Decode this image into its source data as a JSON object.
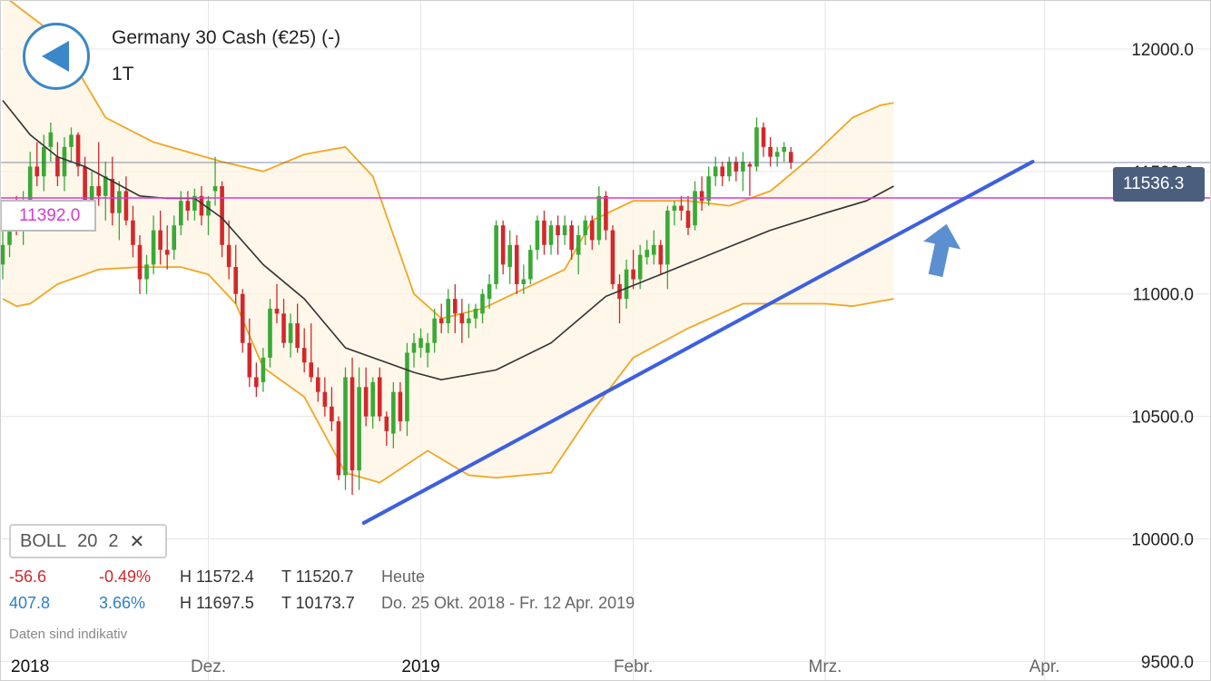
{
  "header": {
    "title": "Germany 30 Cash (€25) (-)",
    "period": "1T"
  },
  "indicator": {
    "name": "BOLL",
    "param1": "20",
    "param2": "2"
  },
  "stats": {
    "row1": {
      "change": "-56.6",
      "change_pct": "-0.49%",
      "high": "H 11572.4",
      "low": "T 11520.7",
      "label": "Heute"
    },
    "row2": {
      "change": "407.8",
      "change_pct": "3.66%",
      "high": "H 11697.5",
      "low": "T 10173.7",
      "label": "Do. 25 Okt. 2018 - Fr. 12 Apr. 2019"
    }
  },
  "disclaimer": "Daten sind indikativ",
  "current_price_label": "11536.3",
  "horizontal_level_label": "11392.0",
  "colors": {
    "up": "#3aa935",
    "down": "#d3282b",
    "bollinger_band": "#f2a623",
    "moving_average": "#333333",
    "trendline": "#3d5fe0",
    "level_line": "#d63ad6",
    "price_line": "#4c5e7d",
    "arrow": "#5b8fd0"
  },
  "chart_data": {
    "type": "candlestick",
    "instrument": "Germany 30 Cash (€25) (-)",
    "period": "1T",
    "y_ticks": [
      "12000.0",
      "11500.0",
      "11000.0",
      "10500.0",
      "10000.0",
      "9500.0"
    ],
    "y_tick_values": [
      12000,
      11500,
      11000,
      10500,
      10000,
      9500
    ],
    "x_ticks": [
      "2018",
      "Dez.",
      "2019",
      "Febr.",
      "Mrz.",
      "Apr."
    ],
    "x_tick_days": [
      0,
      30,
      61,
      92,
      120,
      152
    ],
    "ylim": [
      9420,
      12200
    ],
    "xlim_days": [
      0,
      163
    ],
    "grid": true,
    "current_price": 11536.3,
    "horizontal_level": 11392.0,
    "candles": [
      [
        11120,
        11280,
        11060,
        11200
      ],
      [
        11200,
        11380,
        11150,
        11350
      ],
      [
        11350,
        11400,
        11240,
        11280
      ],
      [
        11280,
        11420,
        11200,
        11380
      ],
      [
        11380,
        11580,
        11300,
        11520
      ],
      [
        11520,
        11620,
        11440,
        11480
      ],
      [
        11480,
        11650,
        11420,
        11600
      ],
      [
        11600,
        11700,
        11540,
        11660
      ],
      [
        11560,
        11620,
        11440,
        11480
      ],
      [
        11480,
        11640,
        11420,
        11600
      ],
      [
        11600,
        11680,
        11540,
        11650
      ],
      [
        11650,
        11660,
        11480,
        11520
      ],
      [
        11520,
        11560,
        11350,
        11380
      ],
      [
        11380,
        11500,
        11300,
        11440
      ],
      [
        11440,
        11620,
        11360,
        11400
      ],
      [
        11400,
        11540,
        11300,
        11480
      ],
      [
        11470,
        11560,
        11280,
        11330
      ],
      [
        11330,
        11460,
        11220,
        11420
      ],
      [
        11420,
        11480,
        11280,
        11300
      ],
      [
        11300,
        11360,
        11150,
        11200
      ],
      [
        11200,
        11240,
        11000,
        11060
      ],
      [
        11060,
        11160,
        11000,
        11120
      ],
      [
        11120,
        11320,
        11080,
        11260
      ],
      [
        11260,
        11340,
        11120,
        11180
      ],
      [
        11180,
        11280,
        11100,
        11160
      ],
      [
        11180,
        11320,
        11140,
        11280
      ],
      [
        11280,
        11420,
        11240,
        11380
      ],
      [
        11380,
        11420,
        11300,
        11340
      ],
      [
        11340,
        11430,
        11300,
        11400
      ],
      [
        11400,
        11440,
        11280,
        11320
      ],
      [
        11320,
        11400,
        11240,
        11380
      ],
      [
        11420,
        11560,
        11360,
        11440
      ],
      [
        11440,
        11460,
        11150,
        11200
      ],
      [
        11200,
        11300,
        11060,
        11110
      ],
      [
        11110,
        11200,
        10960,
        11000
      ],
      [
        11000,
        11020,
        10760,
        10800
      ],
      [
        10800,
        10900,
        10620,
        10660
      ],
      [
        10660,
        10720,
        10580,
        10620
      ],
      [
        10640,
        10780,
        10600,
        10740
      ],
      [
        10740,
        10980,
        10700,
        10940
      ],
      [
        10940,
        11040,
        10880,
        10920
      ],
      [
        10920,
        10980,
        10780,
        10800
      ],
      [
        10800,
        10920,
        10740,
        10880
      ],
      [
        10880,
        10960,
        10760,
        10780
      ],
      [
        10780,
        10860,
        10680,
        10720
      ],
      [
        10720,
        10880,
        10640,
        10660
      ],
      [
        10660,
        10700,
        10560,
        10600
      ],
      [
        10600,
        10660,
        10500,
        10540
      ],
      [
        10540,
        10620,
        10440,
        10480
      ],
      [
        10480,
        10500,
        10240,
        10260
      ],
      [
        10260,
        10700,
        10200,
        10660
      ],
      [
        10660,
        10740,
        10180,
        10280
      ],
      [
        10280,
        10700,
        10200,
        10620
      ],
      [
        10620,
        10700,
        10460,
        10500
      ],
      [
        10500,
        10660,
        10450,
        10640
      ],
      [
        10660,
        10700,
        10480,
        10500
      ],
      [
        10500,
        10520,
        10380,
        10440
      ],
      [
        10430,
        10640,
        10370,
        10600
      ],
      [
        10600,
        10640,
        10440,
        10480
      ],
      [
        10480,
        10800,
        10420,
        10760
      ],
      [
        10760,
        10840,
        10700,
        10800
      ],
      [
        10780,
        10860,
        10740,
        10820
      ],
      [
        10760,
        10840,
        10700,
        10800
      ],
      [
        10800,
        10940,
        10760,
        10900
      ],
      [
        10900,
        10960,
        10840,
        10880
      ],
      [
        10880,
        11020,
        10840,
        10980
      ],
      [
        10980,
        11040,
        10840,
        10920
      ],
      [
        10920,
        10980,
        10800,
        10880
      ],
      [
        10880,
        10960,
        10820,
        10900
      ],
      [
        10900,
        10960,
        10860,
        10940
      ],
      [
        10920,
        11020,
        10880,
        11000
      ],
      [
        10980,
        11080,
        10940,
        11040
      ],
      [
        11040,
        11300,
        11020,
        11280
      ],
      [
        11280,
        11300,
        11080,
        11120
      ],
      [
        11110,
        11260,
        11040,
        11200
      ],
      [
        11200,
        11240,
        11000,
        11040
      ],
      [
        11040,
        11120,
        11000,
        11060
      ],
      [
        11060,
        11200,
        11040,
        11180
      ],
      [
        11180,
        11320,
        11140,
        11300
      ],
      [
        11300,
        11340,
        11160,
        11200
      ],
      [
        11200,
        11300,
        11160,
        11280
      ],
      [
        11280,
        11320,
        11160,
        11240
      ],
      [
        11240,
        11320,
        11200,
        11280
      ],
      [
        11280,
        11300,
        11140,
        11180
      ],
      [
        11160,
        11280,
        11080,
        11240
      ],
      [
        11240,
        11320,
        11200,
        11300
      ],
      [
        11300,
        11320,
        11180,
        11220
      ],
      [
        11220,
        11440,
        11200,
        11400
      ],
      [
        11400,
        11420,
        11220,
        11260
      ],
      [
        11260,
        11280,
        11020,
        11040
      ],
      [
        11040,
        11080,
        10880,
        10980
      ],
      [
        10980,
        11140,
        10940,
        11100
      ],
      [
        11100,
        11180,
        11020,
        11060
      ],
      [
        11060,
        11200,
        11020,
        11160
      ],
      [
        11150,
        11220,
        11120,
        11180
      ],
      [
        11160,
        11260,
        11120,
        11200
      ],
      [
        11200,
        11220,
        11080,
        11120
      ],
      [
        11120,
        11360,
        11020,
        11340
      ],
      [
        11340,
        11380,
        11280,
        11360
      ],
      [
        11360,
        11400,
        11300,
        11340
      ],
      [
        11340,
        11400,
        11240,
        11270
      ],
      [
        11280,
        11460,
        11260,
        11420
      ],
      [
        11420,
        11480,
        11340,
        11380
      ],
      [
        11380,
        11520,
        11360,
        11480
      ],
      [
        11480,
        11560,
        11440,
        11520
      ],
      [
        11520,
        11540,
        11440,
        11480
      ],
      [
        11480,
        11560,
        11460,
        11540
      ],
      [
        11540,
        11560,
        11460,
        11500
      ],
      [
        11500,
        11580,
        11420,
        11540
      ],
      [
        11530,
        11540,
        11400,
        11520
      ],
      [
        11520,
        11720,
        11500,
        11680
      ],
      [
        11680,
        11700,
        11560,
        11600
      ],
      [
        11600,
        11640,
        11520,
        11560
      ],
      [
        11560,
        11600,
        11520,
        11580
      ],
      [
        11580,
        11620,
        11540,
        11600
      ],
      [
        11580,
        11600,
        11510,
        11536
      ]
    ],
    "bollinger_upper": [
      [
        0,
        12220
      ],
      [
        8,
        12050
      ],
      [
        15,
        11720
      ],
      [
        22,
        11620
      ],
      [
        32,
        11540
      ],
      [
        38,
        11500
      ],
      [
        44,
        11570
      ],
      [
        50,
        11600
      ],
      [
        54,
        11480
      ],
      [
        60,
        11000
      ],
      [
        64,
        10900
      ],
      [
        70,
        10940
      ],
      [
        76,
        11020
      ],
      [
        82,
        11100
      ],
      [
        86,
        11300
      ],
      [
        92,
        11380
      ],
      [
        100,
        11380
      ],
      [
        106,
        11360
      ],
      [
        112,
        11420
      ],
      [
        118,
        11560
      ],
      [
        124,
        11720
      ],
      [
        128,
        11770
      ],
      [
        130,
        11780
      ]
    ],
    "bollinger_lower": [
      [
        0,
        10980
      ],
      [
        2,
        10950
      ],
      [
        4,
        10960
      ],
      [
        8,
        11040
      ],
      [
        14,
        11100
      ],
      [
        20,
        11110
      ],
      [
        26,
        11110
      ],
      [
        30,
        11080
      ],
      [
        34,
        10960
      ],
      [
        38,
        10700
      ],
      [
        44,
        10580
      ],
      [
        50,
        10270
      ],
      [
        55,
        10230
      ],
      [
        62,
        10360
      ],
      [
        68,
        10260
      ],
      [
        72,
        10250
      ],
      [
        80,
        10270
      ],
      [
        86,
        10520
      ],
      [
        92,
        10740
      ],
      [
        100,
        10860
      ],
      [
        108,
        10960
      ],
      [
        112,
        10960
      ],
      [
        120,
        10960
      ],
      [
        124,
        10950
      ],
      [
        128,
        10970
      ],
      [
        130,
        10980
      ]
    ],
    "moving_average": [
      [
        0,
        11790
      ],
      [
        4,
        11650
      ],
      [
        8,
        11560
      ],
      [
        12,
        11520
      ],
      [
        16,
        11460
      ],
      [
        20,
        11400
      ],
      [
        24,
        11390
      ],
      [
        28,
        11390
      ],
      [
        32,
        11310
      ],
      [
        38,
        11120
      ],
      [
        44,
        10980
      ],
      [
        50,
        10780
      ],
      [
        56,
        10720
      ],
      [
        60,
        10680
      ],
      [
        64,
        10650
      ],
      [
        72,
        10690
      ],
      [
        80,
        10800
      ],
      [
        88,
        10990
      ],
      [
        96,
        11080
      ],
      [
        104,
        11170
      ],
      [
        112,
        11260
      ],
      [
        120,
        11330
      ],
      [
        126,
        11380
      ],
      [
        130,
        11440
      ]
    ],
    "trendline": [
      [
        54,
        10080
      ],
      [
        150,
        11540
      ]
    ]
  }
}
